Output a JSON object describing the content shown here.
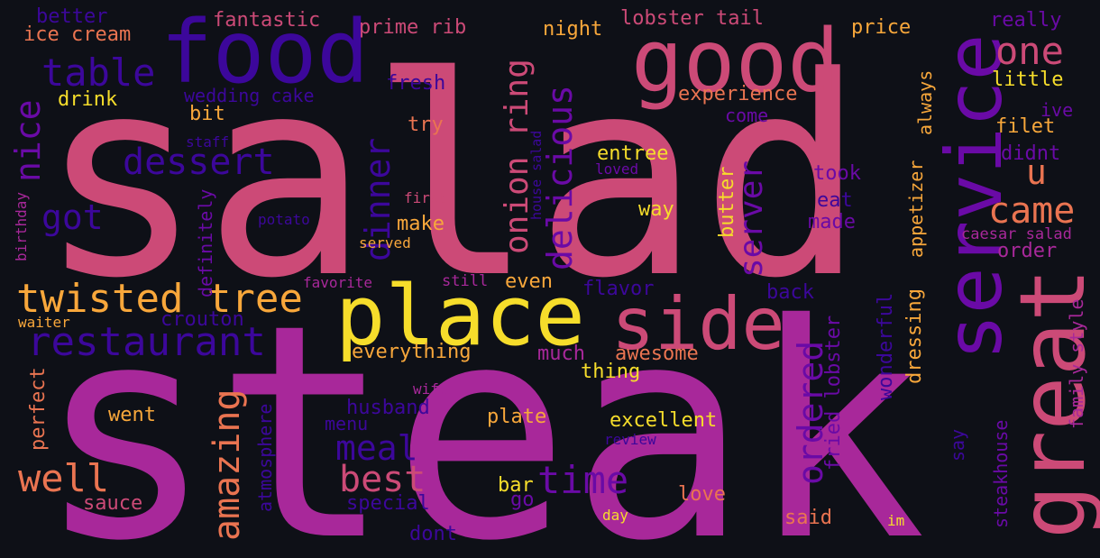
{
  "palette": {
    "background": "#0e1017",
    "pink": "#cc4a77",
    "magenta": "#a8289a",
    "purple": "#6a0aa6",
    "indigo": "#3c079b",
    "orange": "#ea7451",
    "amber": "#f8a73b",
    "yellow": "#f6dd2b"
  },
  "words": {
    "salad": "salad",
    "steak": "steak",
    "food": "food",
    "good": "good",
    "place": "place",
    "service": "service",
    "great": "great",
    "side": "side",
    "twisted_tree": "twisted tree",
    "restaurant": "restaurant",
    "table": "table",
    "dessert": "dessert",
    "nice": "nice",
    "got": "got",
    "dinner": "dinner",
    "onion_ring": "onion ring",
    "delicious": "delicious",
    "one": "one",
    "came": "came",
    "u": "u",
    "server": "server",
    "ordered": "ordered",
    "amazing": "amazing",
    "well": "well",
    "meal": "meal",
    "best": "best",
    "time": "time",
    "better": "better",
    "ice_cream": "ice cream",
    "fantastic": "fantastic",
    "prime_rib": "prime rib",
    "night": "night",
    "lobster_tail": "lobster tail",
    "price": "price",
    "really": "really",
    "drink": "drink",
    "wedding_cake": "wedding cake",
    "fresh": "fresh",
    "experience": "experience",
    "little": "little",
    "always": "always",
    "bit": "bit",
    "try": "try",
    "come": "come",
    "ive": "ive",
    "filet": "filet",
    "staff": "staff",
    "entree": "entree",
    "didnt": "didnt",
    "loved": "loved",
    "took": "took",
    "birthday": "birthday",
    "first": "first",
    "house_salad": "house salad",
    "definitely": "definitely",
    "eat": "eat",
    "potato": "potato",
    "make": "make",
    "way": "way",
    "butter": "butter",
    "made": "made",
    "caesar_salad": "caesar salad",
    "served": "served",
    "appetizer": "appetizer",
    "order": "order",
    "favorite": "favorite",
    "still": "still",
    "even": "even",
    "flavor": "flavor",
    "back": "back",
    "dressing": "dressing",
    "family_style": "family style",
    "crouton": "crouton",
    "waiter": "waiter",
    "everything": "everything",
    "much": "much",
    "awesome": "awesome",
    "thing": "thing",
    "fried_lobster": "fried lobster",
    "wonderful": "wonderful",
    "perfect": "perfect",
    "wife": "wife",
    "husband": "husband",
    "atmosphere": "atmosphere",
    "went": "went",
    "menu": "menu",
    "plate": "plate",
    "excellent": "excellent",
    "review": "review",
    "say": "say",
    "steakhouse": "steakhouse",
    "sauce": "sauce",
    "special": "special",
    "bar": "bar",
    "go": "go",
    "love": "love",
    "day": "day",
    "said": "said",
    "im": "im",
    "dont": "dont"
  }
}
